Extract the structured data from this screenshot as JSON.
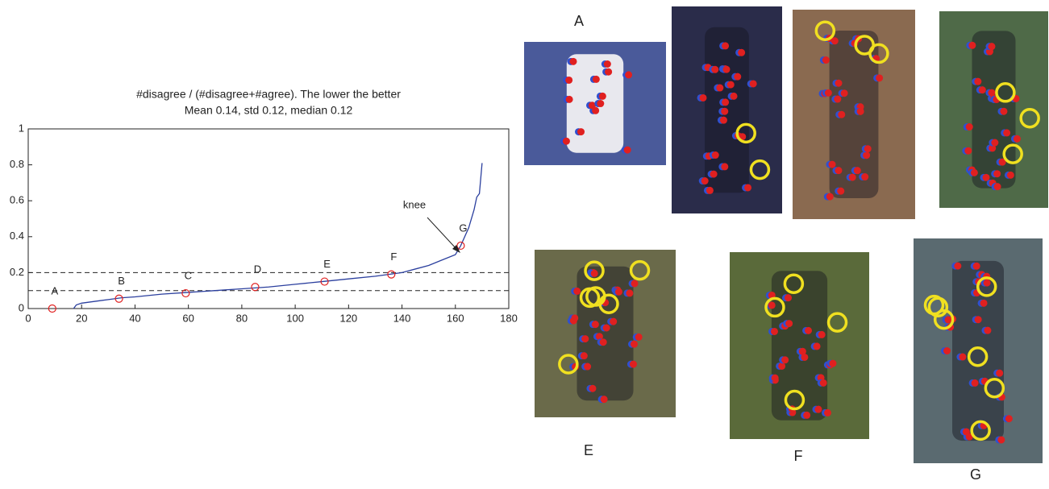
{
  "chart_data": {
    "type": "line",
    "title": "#disagree / (#disagree+#agree). The lower the better",
    "subtitle": "Mean 0.14, std 0.12, median 0.12",
    "x": [
      17,
      18,
      20,
      25,
      30,
      35,
      40,
      50,
      60,
      70,
      80,
      90,
      100,
      110,
      120,
      130,
      140,
      145,
      150,
      155,
      160,
      162,
      165,
      167,
      168,
      169,
      170
    ],
    "series": [
      {
        "color": "#2b3f9e",
        "values": [
          0,
          0.02,
          0.03,
          0.04,
          0.05,
          0.06,
          0.065,
          0.08,
          0.09,
          0.1,
          0.11,
          0.12,
          0.135,
          0.15,
          0.165,
          0.18,
          0.2,
          0.22,
          0.24,
          0.27,
          0.3,
          0.35,
          0.45,
          0.55,
          0.62,
          0.64,
          0.81
        ]
      }
    ],
    "points": {
      "labels": [
        "A",
        "B",
        "C",
        "D",
        "E",
        "F",
        "G"
      ],
      "x": [
        9,
        34,
        59,
        85,
        111,
        136,
        162
      ],
      "values": [
        0,
        0.055,
        0.085,
        0.12,
        0.15,
        0.19,
        0.35
      ],
      "color": "#e02020"
    },
    "hlines": [
      0.1,
      0.2
    ],
    "annotations": [
      "knee"
    ],
    "xlim": [
      0,
      180
    ],
    "xticks": [
      0,
      20,
      40,
      60,
      80,
      100,
      120,
      140,
      160,
      180
    ],
    "ylim": [
      0,
      1
    ],
    "yticks": [
      0,
      0.2,
      0.4,
      0.6,
      0.8,
      1
    ]
  },
  "panel_labels": [
    "A",
    "E",
    "F",
    "G"
  ]
}
